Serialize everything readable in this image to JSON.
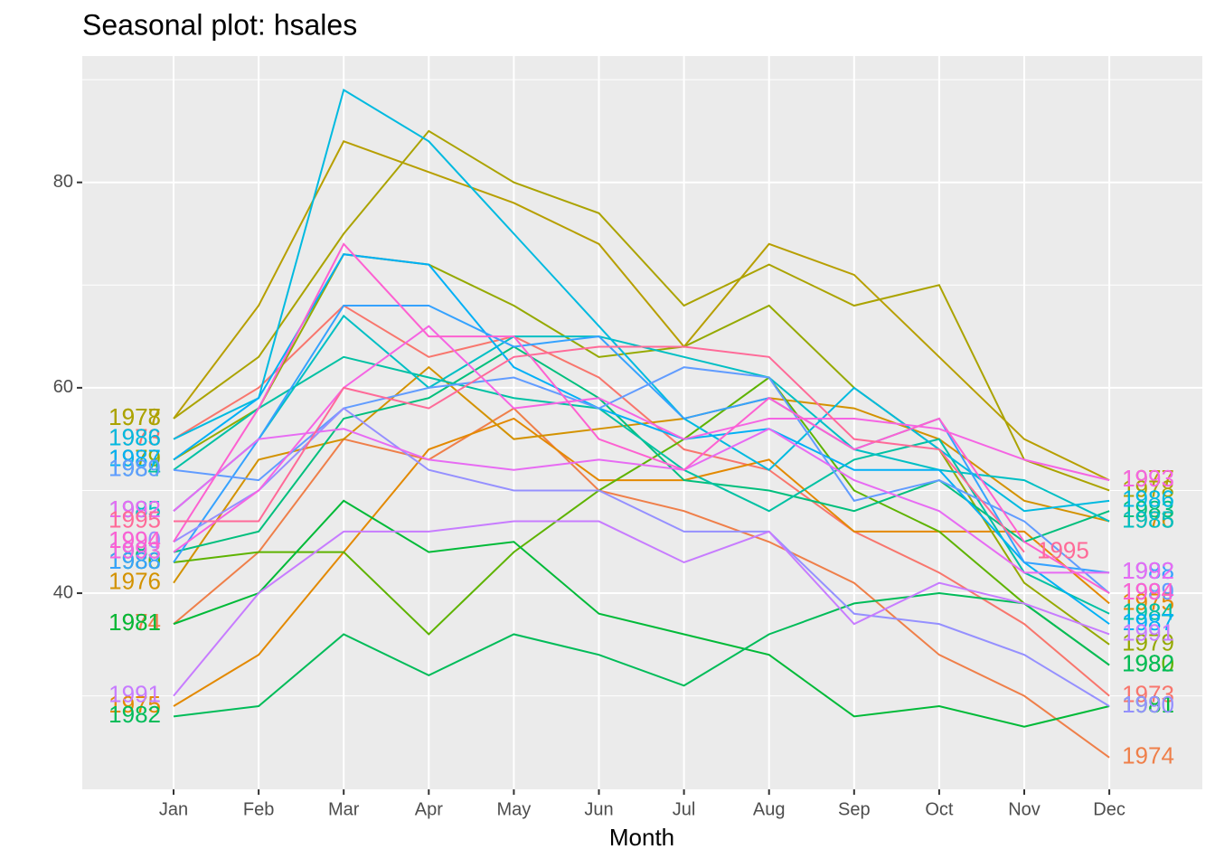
{
  "chart_data": {
    "type": "line",
    "title": "Seasonal plot: hsales",
    "x_label": "Month",
    "categories": [
      "Jan",
      "Feb",
      "Mar",
      "Apr",
      "May",
      "Jun",
      "Jul",
      "Aug",
      "Sep",
      "Oct",
      "Nov",
      "Dec"
    ],
    "ylim": [
      20.9,
      92.3
    ],
    "yticks": [
      40,
      60,
      80
    ],
    "y_minor_ticks": [
      30,
      50,
      70,
      90
    ],
    "grid": true,
    "series": [
      {
        "name": "1973",
        "color": "#F8766D",
        "values": [
          55,
          60,
          68,
          63,
          65,
          61,
          54,
          52,
          46,
          42,
          37,
          30
        ]
      },
      {
        "name": "1974",
        "color": "#EF7F49",
        "values": [
          37,
          44,
          55,
          53,
          58,
          50,
          48,
          45,
          41,
          34,
          30,
          24
        ]
      },
      {
        "name": "1975",
        "color": "#E38900",
        "values": [
          29,
          34,
          44,
          54,
          57,
          51,
          51,
          53,
          46,
          46,
          46,
          39
        ]
      },
      {
        "name": "1976",
        "color": "#D39200",
        "values": [
          41,
          53,
          55,
          62,
          55,
          56,
          57,
          59,
          58,
          55,
          49,
          47
        ]
      },
      {
        "name": "1977",
        "color": "#B79F00",
        "values": [
          57,
          68,
          84,
          81,
          78,
          74,
          64,
          74,
          71,
          63,
          55,
          51
        ]
      },
      {
        "name": "1978",
        "color": "#ABA300",
        "values": [
          57,
          63,
          75,
          85,
          80,
          77,
          68,
          72,
          68,
          70,
          53,
          50
        ]
      },
      {
        "name": "1979",
        "color": "#95A900",
        "values": [
          53,
          58,
          73,
          72,
          68,
          63,
          64,
          68,
          60,
          54,
          41,
          35
        ]
      },
      {
        "name": "1980",
        "color": "#5EB300",
        "values": [
          43,
          44,
          44,
          36,
          44,
          50,
          55,
          61,
          50,
          46,
          39,
          33
        ]
      },
      {
        "name": "1981",
        "color": "#00BA38",
        "values": [
          37,
          40,
          49,
          44,
          45,
          38,
          36,
          34,
          28,
          29,
          27,
          29
        ]
      },
      {
        "name": "1982",
        "color": "#00BC59",
        "values": [
          28,
          29,
          36,
          32,
          36,
          34,
          31,
          36,
          39,
          40,
          39,
          33
        ]
      },
      {
        "name": "1983",
        "color": "#00BF7D",
        "values": [
          44,
          46,
          57,
          59,
          64,
          59,
          51,
          50,
          48,
          51,
          45,
          48
        ]
      },
      {
        "name": "1984",
        "color": "#00C1A3",
        "values": [
          52,
          58,
          63,
          61,
          59,
          58,
          52,
          48,
          53,
          55,
          42,
          38
        ]
      },
      {
        "name": "1985",
        "color": "#00BFC4",
        "values": [
          48,
          55,
          67,
          60,
          65,
          65,
          63,
          61,
          54,
          52,
          51,
          47
        ]
      },
      {
        "name": "1986",
        "color": "#00BAE0",
        "values": [
          55,
          59,
          89,
          84,
          75,
          66,
          57,
          52,
          60,
          54,
          48,
          49
        ]
      },
      {
        "name": "1987",
        "color": "#00B0F6",
        "values": [
          53,
          59,
          73,
          72,
          62,
          58,
          55,
          56,
          52,
          52,
          43,
          37
        ]
      },
      {
        "name": "1988",
        "color": "#35A2FF",
        "values": [
          43,
          55,
          68,
          68,
          64,
          65,
          57,
          59,
          54,
          57,
          43,
          42
        ]
      },
      {
        "name": "1989",
        "color": "#619CFF",
        "values": [
          52,
          51,
          58,
          60,
          61,
          58,
          62,
          61,
          49,
          51,
          47,
          40
        ]
      },
      {
        "name": "1990",
        "color": "#9590FF",
        "values": [
          45,
          50,
          58,
          52,
          50,
          50,
          46,
          46,
          38,
          37,
          34,
          29
        ]
      },
      {
        "name": "1991",
        "color": "#C77CFF",
        "values": [
          30,
          40,
          46,
          46,
          47,
          47,
          43,
          46,
          37,
          41,
          39,
          36
        ]
      },
      {
        "name": "1992",
        "color": "#E76BF3",
        "values": [
          48,
          55,
          56,
          53,
          52,
          53,
          52,
          56,
          51,
          48,
          42,
          42
        ]
      },
      {
        "name": "1993",
        "color": "#F564E3",
        "values": [
          44,
          50,
          60,
          66,
          58,
          59,
          55,
          57,
          57,
          56,
          53,
          51
        ]
      },
      {
        "name": "1994",
        "color": "#FD61D1",
        "values": [
          45,
          58,
          74,
          65,
          65,
          55,
          52,
          59,
          54,
          57,
          45,
          40
        ]
      },
      {
        "name": "1995",
        "color": "#FF6A98",
        "values": [
          47,
          47,
          60,
          58,
          63,
          64,
          64,
          63,
          55,
          54,
          44,
          null
        ]
      }
    ]
  }
}
